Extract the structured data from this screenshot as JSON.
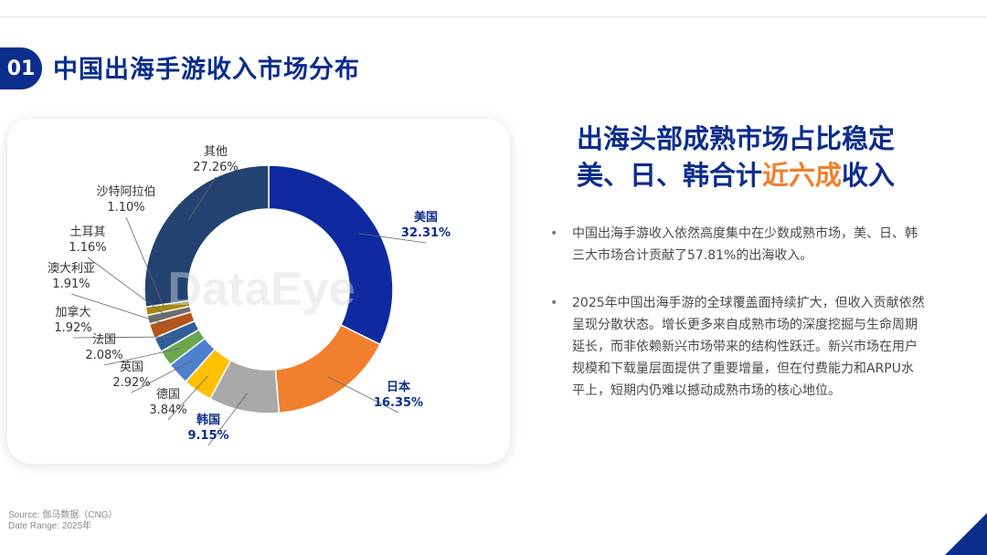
{
  "header": {
    "number": "01",
    "title": "中国出海手游收入市场分布"
  },
  "chart_data": {
    "type": "pie",
    "donut": true,
    "watermark": "DataEye",
    "slices": [
      {
        "name": "美国",
        "value": 32.31,
        "label": "32.31%",
        "color": "#0f2aa0",
        "highlight": true
      },
      {
        "name": "日本",
        "value": 16.35,
        "label": "16.35%",
        "color": "#f0802d",
        "highlight": true
      },
      {
        "name": "韩国",
        "value": 9.15,
        "label": "9.15%",
        "color": "#a9a9a9",
        "highlight": true
      },
      {
        "name": "德国",
        "value": 3.84,
        "label": "3.84%",
        "color": "#ffc000",
        "highlight": false
      },
      {
        "name": "英国",
        "value": 2.92,
        "label": "2.92%",
        "color": "#4f7fcf",
        "highlight": false
      },
      {
        "name": "法国",
        "value": 2.08,
        "label": "2.08%",
        "color": "#6aa84f",
        "highlight": false
      },
      {
        "name": "加拿大",
        "value": 1.92,
        "label": "1.92%",
        "color": "#2f5f9a",
        "highlight": false
      },
      {
        "name": "澳大利亚",
        "value": 1.91,
        "label": "1.91%",
        "color": "#b3551c",
        "highlight": false
      },
      {
        "name": "土耳其",
        "value": 1.16,
        "label": "1.16%",
        "color": "#6e6e6e",
        "highlight": false
      },
      {
        "name": "沙特阿拉伯",
        "value": 1.1,
        "label": "1.10%",
        "color": "#a58a12",
        "highlight": false
      },
      {
        "name": "其他",
        "value": 27.26,
        "label": "27.26%",
        "color": "#23426f",
        "highlight": false
      }
    ]
  },
  "right": {
    "headline_line1": "出海头部成熟市场占比稳定",
    "headline_line2_prefix": "美、日、韩合计",
    "headline_line2_accent": "近六成",
    "headline_line2_suffix": "收入",
    "bullet_char": "•",
    "bullet1": "中国出海手游收入依然高度集中在少数成熟市场，美、日、韩三大市场合计贡献了57.81%的出海收入。",
    "bullet2": "2025年中国出海手游的全球覆盖面持续扩大，但收入贡献依然呈现分散状态。增长更多来自成熟市场的深度挖掘与生命周期延长，而非依赖新兴市场带来的结构性跃迁。新兴市场在用户规模和下载量层面提供了重要增量，但在付费能力和ARPU水平上，短期内仍难以撼动成熟市场的核心地位。"
  },
  "footer": {
    "source": "Source: 伽马数据（CNG）",
    "date_range": "Date Range: 2025年"
  }
}
